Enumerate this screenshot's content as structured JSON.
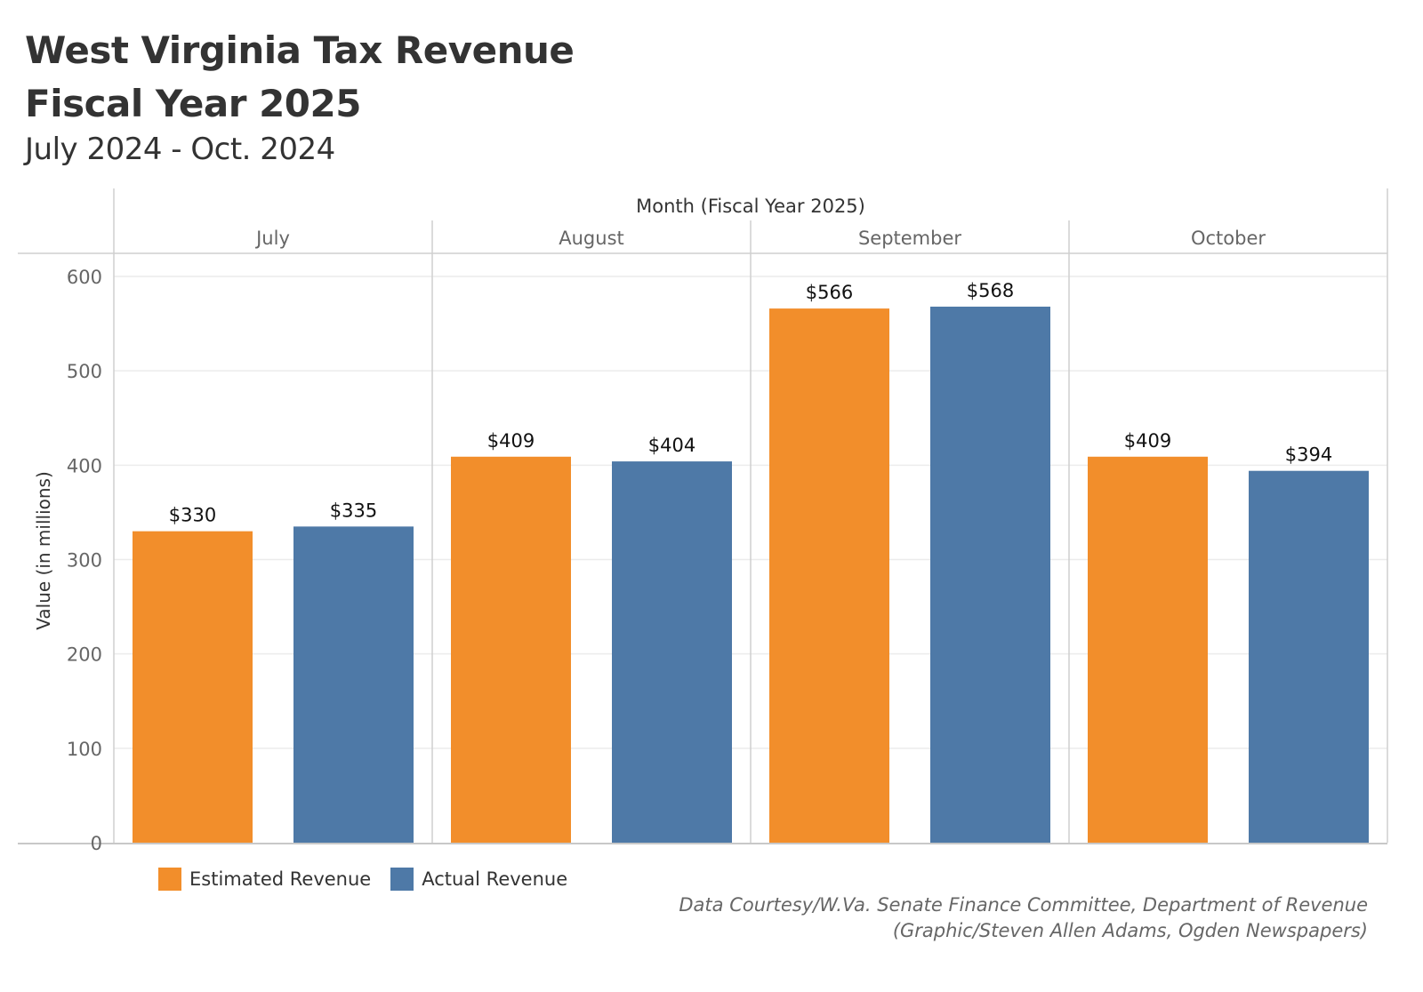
{
  "header": {
    "title_line1": "West Virginia Tax Revenue",
    "title_line2": "Fiscal Year 2025",
    "subtitle": "July 2024 - Oct. 2024"
  },
  "legend": [
    {
      "label": "Estimated Revenue",
      "color": "#F28E2B"
    },
    {
      "label": "Actual Revenue",
      "color": "#4E79A7"
    }
  ],
  "credits": {
    "line1": "Data Courtesy/W.Va. Senate Finance Committee, Department of Revenue",
    "line2": "(Graphic/Steven Allen Adams, Ogden Newspapers)"
  },
  "chart_data": {
    "type": "bar",
    "title": "West Virginia Tax Revenue Fiscal Year 2025",
    "subtitle": "July 2024 - Oct. 2024",
    "column_header": "Month (Fiscal Year 2025)",
    "categories": [
      "July",
      "August",
      "September",
      "October"
    ],
    "xlabel": "Month (Fiscal Year 2025)",
    "ylabel": "Value (in millions)",
    "ylim": [
      0,
      600
    ],
    "yticks": [
      0,
      100,
      200,
      300,
      400,
      500,
      600
    ],
    "grid": true,
    "legend_position": "bottom-left",
    "series": [
      {
        "name": "Estimated Revenue",
        "color": "#F28E2B",
        "values": [
          330,
          409,
          566,
          409
        ],
        "labels": [
          "$330",
          "$409",
          "$566",
          "$409"
        ]
      },
      {
        "name": "Actual Revenue",
        "color": "#4E79A7",
        "values": [
          335,
          404,
          568,
          394
        ],
        "labels": [
          "$335",
          "$404",
          "$568",
          "$394"
        ]
      }
    ]
  }
}
